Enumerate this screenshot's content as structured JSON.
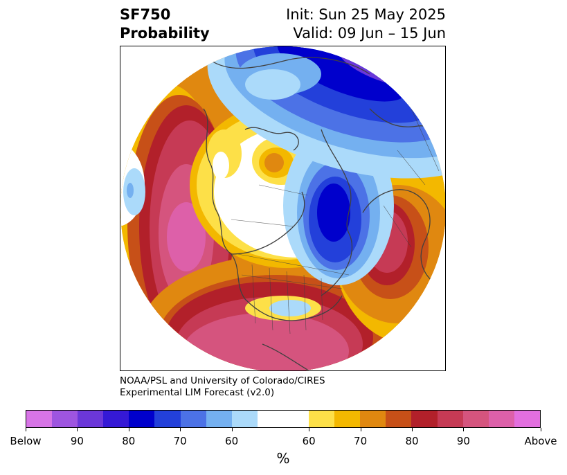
{
  "header": {
    "title_line1": "SF750",
    "title_line2": "Probability",
    "init_text": "Init: Sun 25 May 2025",
    "valid_text": "Valid: 09 Jun – 15 Jun"
  },
  "map": {
    "projection": "north-polar-stereographic",
    "basemap_features": [
      "coastlines",
      "country-borders",
      "us-state-borders",
      "canada-province-borders"
    ]
  },
  "credit": {
    "line1": "NOAA/PSL and University of Colorado/CIRES",
    "line2": "Experimental LIM Forecast (v2.0)"
  },
  "colorbar": {
    "unit": "%",
    "colors": [
      "#d774e6",
      "#9e55e0",
      "#6b37d9",
      "#3519d6",
      "#0000cc",
      "#2340da",
      "#4c72e6",
      "#74b0f0",
      "#abdafa",
      "#ffffff",
      "#fde048",
      "#f3b800",
      "#e08810",
      "#c75018",
      "#b2202a",
      "#c63a55",
      "#d5547e",
      "#dd60a9",
      "#e36fdf"
    ],
    "tick_labels": [
      "Below",
      "90",
      "80",
      "70",
      "60",
      "60",
      "70",
      "80",
      "90",
      "Above"
    ],
    "legend_classes": [
      "below-normal",
      "near-normal",
      "above-normal"
    ]
  },
  "palette": {
    "pink": "#d5547e",
    "magenta": "#dd60a9",
    "red_dark": "#b2202a",
    "red": "#c63a55",
    "orange_dark": "#c75018",
    "orange": "#e08810",
    "gold": "#f3b800",
    "yellow": "#fde048",
    "blue_light": "#abdafa",
    "blue_sky": "#74b0f0",
    "blue_mid": "#4c72e6",
    "blue_royal": "#2340da",
    "blue_navy": "#0000cc",
    "violet": "#6b37d9",
    "purple": "#9e55e0"
  }
}
